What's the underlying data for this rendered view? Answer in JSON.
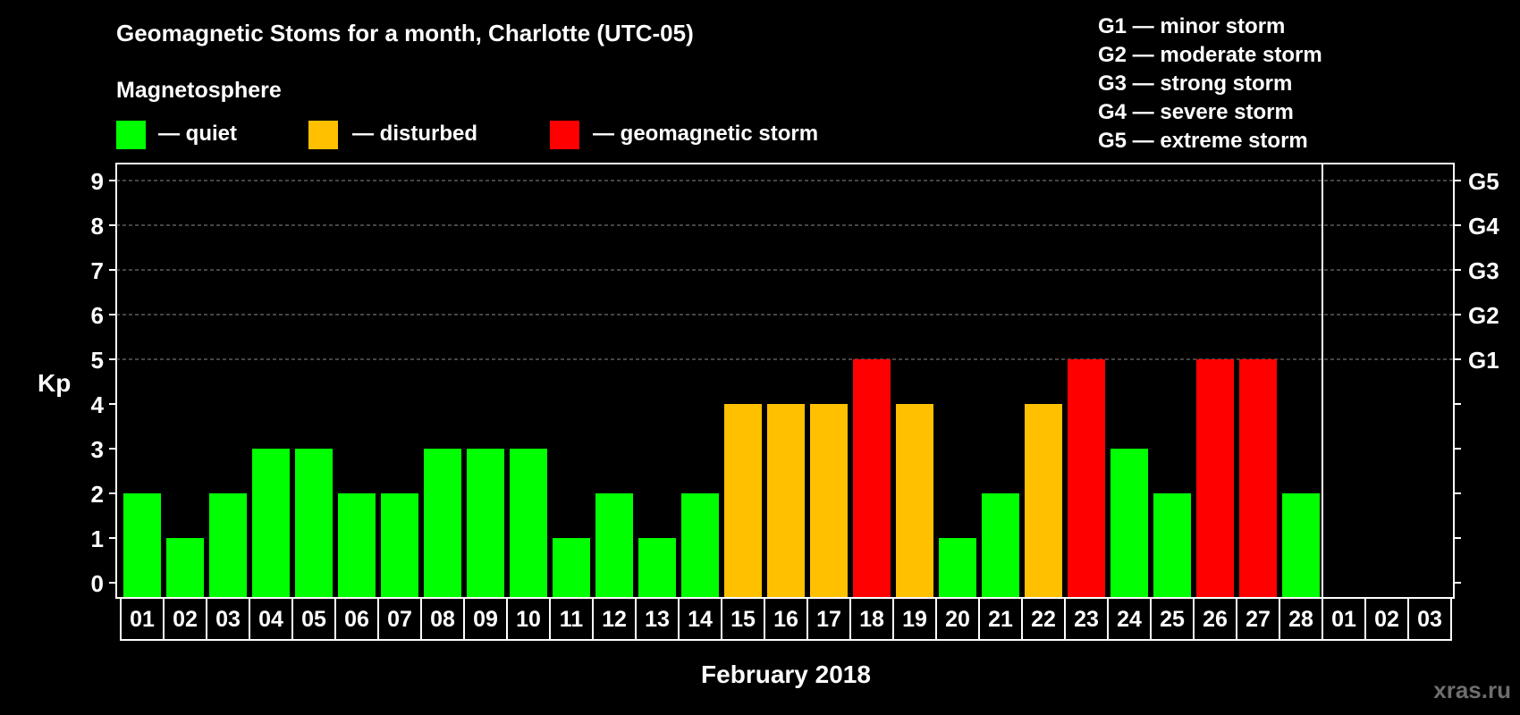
{
  "title": "Geomagnetic Stoms for a month, Charlotte (UTC-05)",
  "legend": {
    "heading": "Magnetosphere",
    "items": [
      {
        "label": "— quiet",
        "color": "#00ff00"
      },
      {
        "label": "— disturbed",
        "color": "#ffc000"
      },
      {
        "label": "— geomagnetic storm",
        "color": "#ff0000"
      }
    ]
  },
  "g_scale": [
    "G1 — minor storm",
    "G2 — moderate storm",
    "G3 — strong storm",
    "G4 — severe storm",
    "G5 — extreme storm"
  ],
  "watermark": "xras.ru",
  "chart_data": {
    "type": "bar",
    "ylabel": "Kp",
    "xlabel": "February 2018",
    "ylim": [
      0,
      9
    ],
    "yticks": [
      "0",
      "1",
      "2",
      "3",
      "4",
      "5",
      "6",
      "7",
      "8",
      "9"
    ],
    "right_labels": [
      {
        "value": 5,
        "label": "G1"
      },
      {
        "value": 6,
        "label": "G2"
      },
      {
        "value": 7,
        "label": "G3"
      },
      {
        "value": 8,
        "label": "G4"
      },
      {
        "value": 9,
        "label": "G5"
      }
    ],
    "grid_lines": [
      5,
      6,
      7,
      8,
      9
    ],
    "categories": [
      "01",
      "02",
      "03",
      "04",
      "05",
      "06",
      "07",
      "08",
      "09",
      "10",
      "11",
      "12",
      "13",
      "14",
      "15",
      "16",
      "17",
      "18",
      "19",
      "20",
      "21",
      "22",
      "23",
      "24",
      "25",
      "26",
      "27",
      "28",
      "01",
      "02",
      "03"
    ],
    "values": [
      2,
      1,
      2,
      3,
      3,
      2,
      2,
      3,
      3,
      3,
      1,
      2,
      1,
      2,
      4,
      4,
      4,
      5,
      4,
      1,
      2,
      4,
      5,
      3,
      2,
      5,
      5,
      2,
      null,
      null,
      null
    ],
    "colors": {
      "quiet": "#00ff00",
      "disturbed": "#ffc000",
      "storm": "#ff0000"
    },
    "month_end_index": 28
  }
}
